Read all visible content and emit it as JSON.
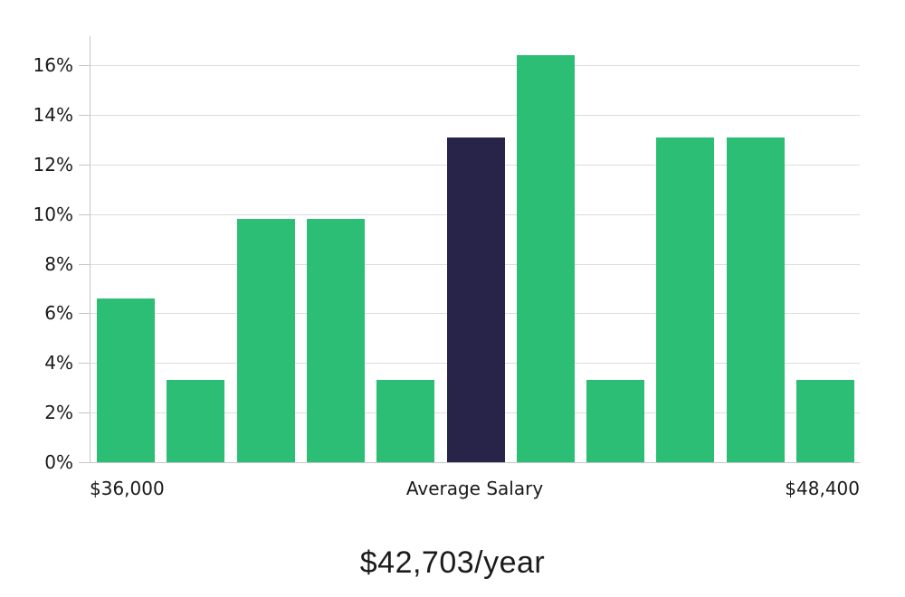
{
  "chart_data": {
    "type": "bar",
    "subtype": "histogram",
    "values": [
      6.6,
      3.3,
      9.8,
      9.8,
      3.3,
      13.1,
      16.4,
      3.3,
      13.1,
      13.1,
      3.3
    ],
    "bar_color_keys": [
      "green",
      "green",
      "green",
      "green",
      "green",
      "navy",
      "green",
      "green",
      "green",
      "green",
      "green"
    ],
    "highlight_index": 5,
    "y_ticks": [
      {
        "value": 0,
        "label": "0%"
      },
      {
        "value": 2,
        "label": "2%"
      },
      {
        "value": 4,
        "label": "4%"
      },
      {
        "value": 6,
        "label": "6%"
      },
      {
        "value": 8,
        "label": "8%"
      },
      {
        "value": 10,
        "label": "10%"
      },
      {
        "value": 12,
        "label": "12%"
      },
      {
        "value": 14,
        "label": "14%"
      },
      {
        "value": 16,
        "label": "16%"
      }
    ],
    "ylim": [
      0,
      17.2
    ],
    "grid": "horizontal",
    "legend": "none",
    "x_axis_labels": [
      {
        "text": "$36,000",
        "position": "left"
      },
      {
        "text": "Average Salary",
        "position": "center"
      },
      {
        "text": "$48,400",
        "position": "right"
      }
    ],
    "caption": "$42,703/year",
    "colors": {
      "green": "#2CBE74",
      "navy": "#282349",
      "gridline": "#dddddd",
      "axis": "#c6c6c6",
      "text": "#1a1a1a"
    }
  }
}
